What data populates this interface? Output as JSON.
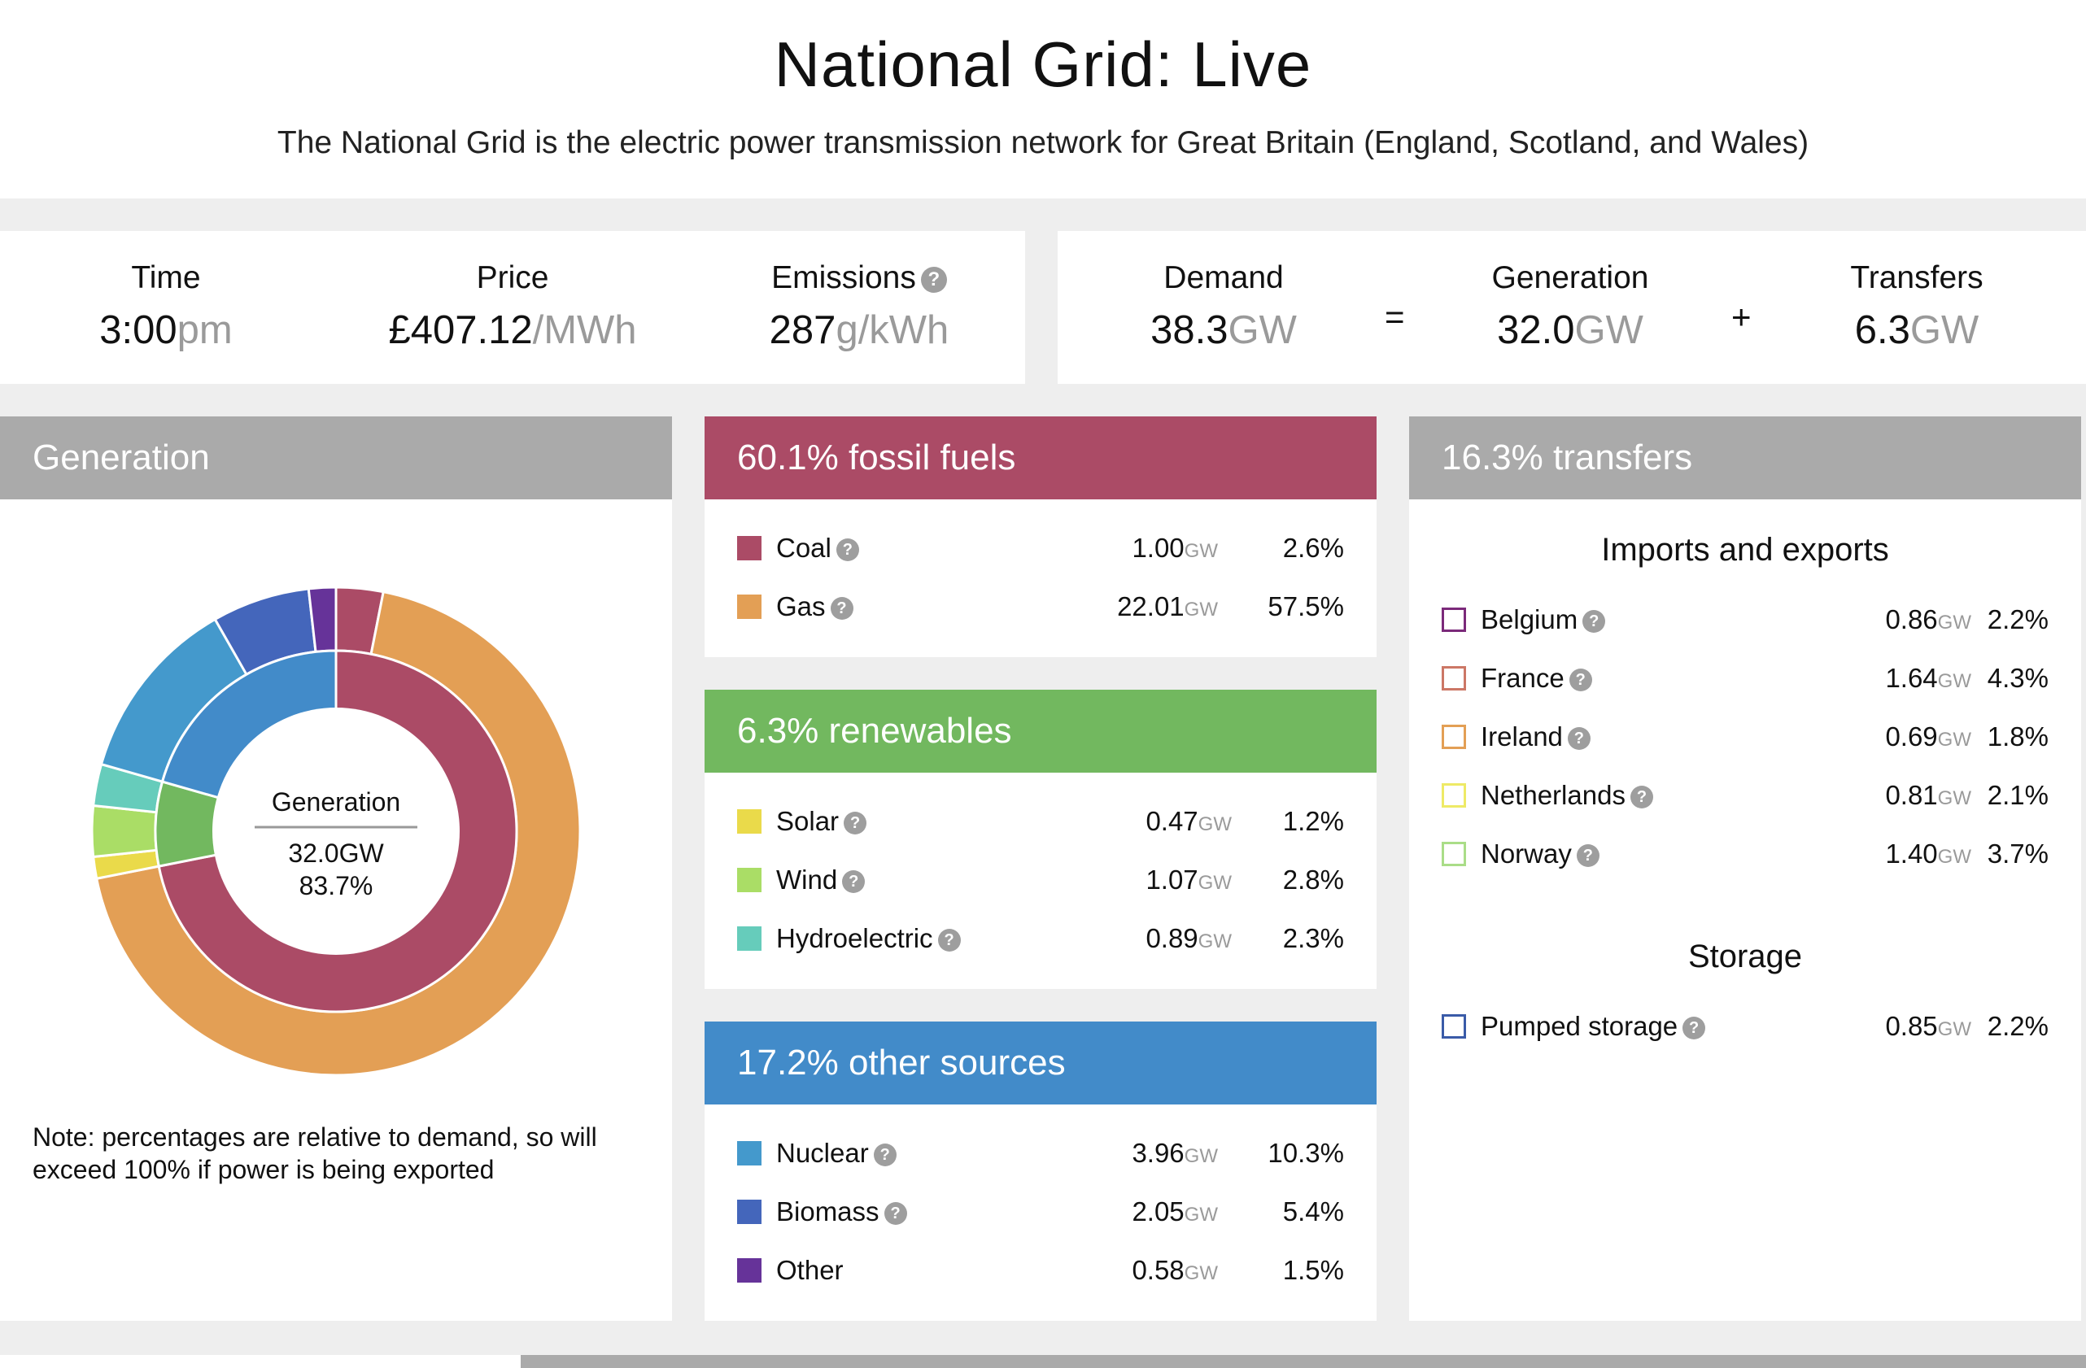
{
  "header": {
    "title": "National Grid: Live",
    "subtitle": "The National Grid is the electric power transmission network for Great Britain (England, Scotland, and Wales)"
  },
  "stats": {
    "time": {
      "label": "Time",
      "value": "3:00",
      "unit": "pm"
    },
    "price": {
      "label": "Price",
      "value": "£407.12",
      "unit": "/MWh"
    },
    "emissions": {
      "label": "Emissions",
      "value": "287",
      "unit": "g/kWh"
    },
    "demand": {
      "label": "Demand",
      "value": "38.3",
      "unit": "GW"
    },
    "generation": {
      "label": "Generation",
      "value": "32.0",
      "unit": "GW"
    },
    "transfers": {
      "label": "Transfers",
      "value": "6.3",
      "unit": "GW"
    },
    "equals": "=",
    "plus": "+"
  },
  "help_glyph": "?",
  "generation_panel": {
    "title": "Generation",
    "color": "#aaaaaa",
    "center_label": "Generation",
    "center_value": "32.0GW",
    "center_pct": "83.7%",
    "note": "Note: percentages are relative to demand, so will exceed 100% if power is being exported"
  },
  "chart_data": {
    "type": "pie",
    "inner_ring": [
      {
        "name": "fossil fuels",
        "value": 60.1,
        "color": "#ab4b66"
      },
      {
        "name": "renewables",
        "value": 6.3,
        "color": "#72b85f"
      },
      {
        "name": "other sources",
        "value": 17.2,
        "color": "#428bc9"
      }
    ],
    "outer_ring": [
      {
        "name": "Coal",
        "value": 2.6,
        "color": "#ab4b66"
      },
      {
        "name": "Gas",
        "value": 57.5,
        "color": "#e39f55"
      },
      {
        "name": "Solar",
        "value": 1.2,
        "color": "#eada4a"
      },
      {
        "name": "Wind",
        "value": 2.8,
        "color": "#aadd66"
      },
      {
        "name": "Hydroelectric",
        "value": 2.3,
        "color": "#66ccbb"
      },
      {
        "name": "Nuclear",
        "value": 10.3,
        "color": "#4499cc"
      },
      {
        "name": "Biomass",
        "value": 5.4,
        "color": "#4466bb"
      },
      {
        "name": "Other",
        "value": 1.5,
        "color": "#663399"
      }
    ],
    "outer_total": 100
  },
  "fossil": {
    "title": "60.1% fossil fuels",
    "color": "#ab4b66",
    "items": [
      {
        "name": "Coal",
        "gw": "1.00",
        "unit": "GW",
        "pct": "2.6%",
        "color": "#ab4b66"
      },
      {
        "name": "Gas",
        "gw": "22.01",
        "unit": "GW",
        "pct": "57.5%",
        "color": "#e39f55"
      }
    ]
  },
  "renewables": {
    "title": "6.3% renewables",
    "color": "#72b85f",
    "items": [
      {
        "name": "Solar",
        "gw": "0.47",
        "unit": "GW",
        "pct": "1.2%",
        "color": "#eada4a"
      },
      {
        "name": "Wind",
        "gw": "1.07",
        "unit": "GW",
        "pct": "2.8%",
        "color": "#aadd66"
      },
      {
        "name": "Hydroelectric",
        "gw": "0.89",
        "unit": "GW",
        "pct": "2.3%",
        "color": "#66ccbb"
      }
    ]
  },
  "other": {
    "title": "17.2% other sources",
    "color": "#428bc9",
    "items": [
      {
        "name": "Nuclear",
        "gw": "3.96",
        "unit": "GW",
        "pct": "10.3%",
        "color": "#4499cc"
      },
      {
        "name": "Biomass",
        "gw": "2.05",
        "unit": "GW",
        "pct": "5.4%",
        "color": "#4466bb"
      },
      {
        "name": "Other",
        "gw": "0.58",
        "unit": "GW",
        "pct": "1.5%",
        "color": "#663399"
      }
    ]
  },
  "transfers_panel": {
    "title": "16.3% transfers",
    "color": "#aaaaaa",
    "imports_title": "Imports and exports",
    "imports": [
      {
        "name": "Belgium",
        "gw": "0.86",
        "unit": "GW",
        "pct": "2.2%",
        "color": "#7b2a7a"
      },
      {
        "name": "France",
        "gw": "1.64",
        "unit": "GW",
        "pct": "4.3%",
        "color": "#cc7766"
      },
      {
        "name": "Ireland",
        "gw": "0.69",
        "unit": "GW",
        "pct": "1.8%",
        "color": "#e39f55"
      },
      {
        "name": "Netherlands",
        "gw": "0.81",
        "unit": "GW",
        "pct": "2.1%",
        "color": "#eeea66"
      },
      {
        "name": "Norway",
        "gw": "1.40",
        "unit": "GW",
        "pct": "3.7%",
        "color": "#aadd88"
      }
    ],
    "storage_title": "Storage",
    "storage": [
      {
        "name": "Pumped storage",
        "gw": "0.85",
        "unit": "GW",
        "pct": "2.2%",
        "color": "#3a5ba8"
      }
    ]
  }
}
